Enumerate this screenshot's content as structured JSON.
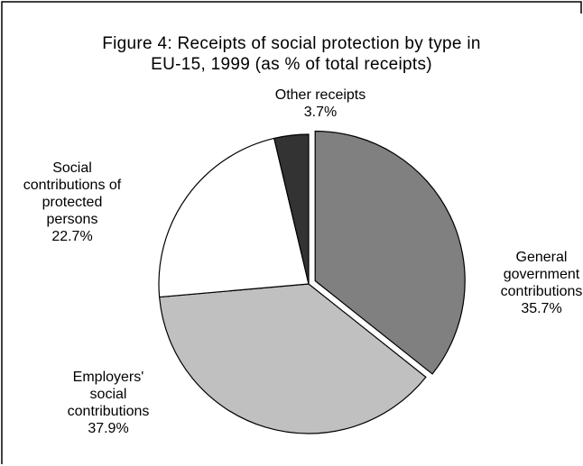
{
  "chart_data": {
    "type": "pie",
    "title": [
      "Figure 4: Receipts of social protection by type in",
      "EU-15, 1999 (as % of total receipts)"
    ],
    "slices": [
      {
        "label": [
          "General",
          "government",
          "contributions"
        ],
        "value_label": "35.7%",
        "value": 35.7,
        "color": "#808080",
        "exploded": true
      },
      {
        "label": [
          "Employers'",
          "social",
          "contributions"
        ],
        "value_label": "37.9%",
        "value": 37.9,
        "color": "#c0c0c0",
        "exploded": false
      },
      {
        "label": [
          "Social",
          "contributions of",
          "protected",
          "persons"
        ],
        "value_label": "22.7%",
        "value": 22.7,
        "color": "#ffffff",
        "exploded": false
      },
      {
        "label": [
          "Other receipts"
        ],
        "value_label": "3.7%",
        "value": 3.7,
        "color": "#333333",
        "exploded": false
      }
    ]
  }
}
